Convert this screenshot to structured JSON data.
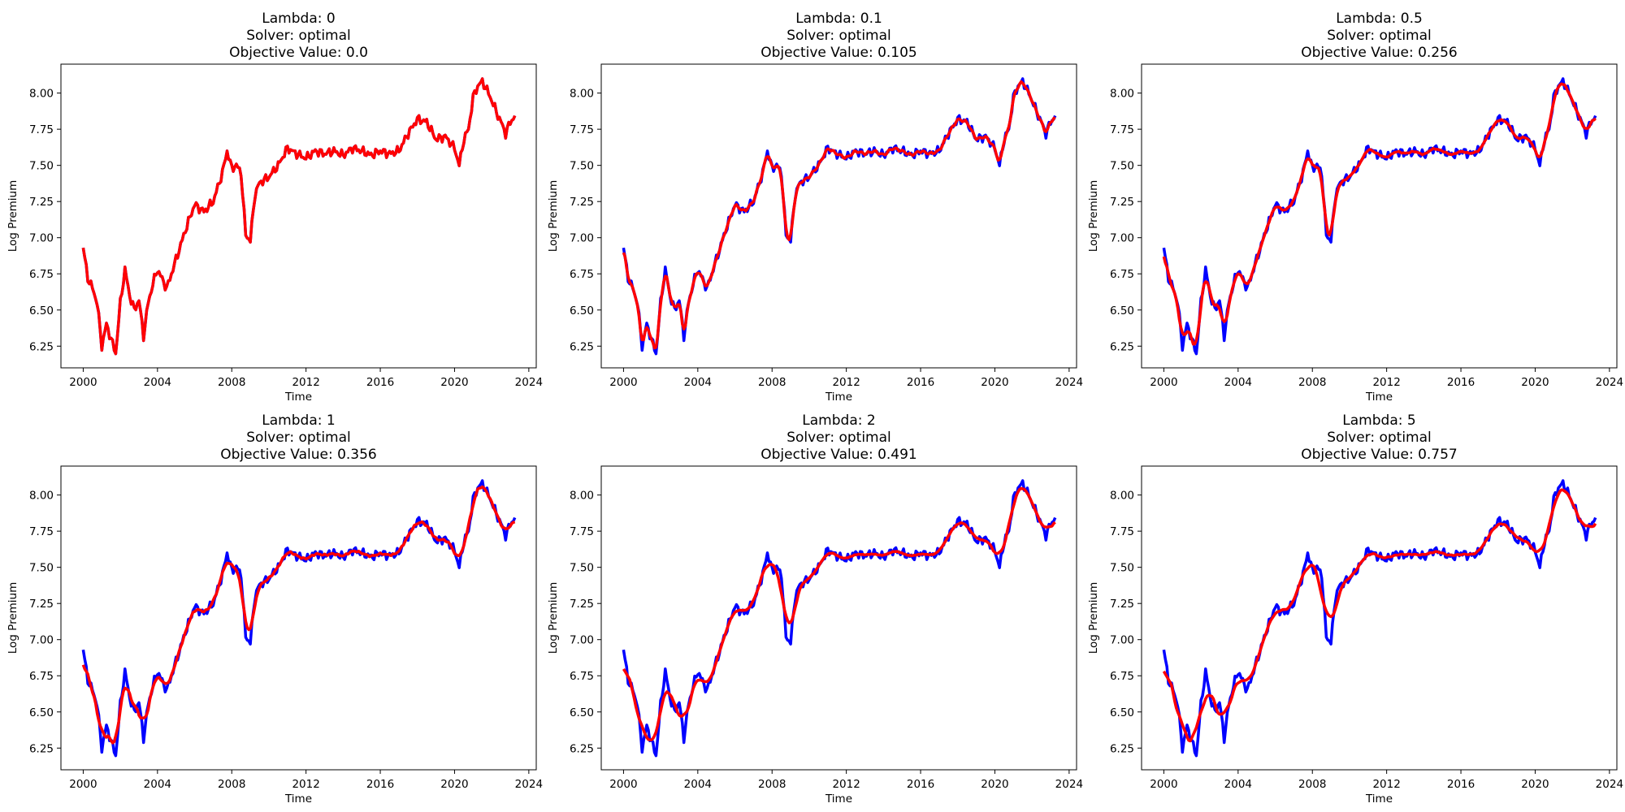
{
  "chart_data": {
    "type": "line",
    "layout": "2x3 grid",
    "grid": false,
    "x_ticks": [
      "2000",
      "2004",
      "2008",
      "2012",
      "2016",
      "2020",
      "2024"
    ],
    "y_ticks": [
      "6.25",
      "6.50",
      "6.75",
      "7.00",
      "7.25",
      "7.50",
      "7.75",
      "8.00"
    ],
    "xlim": [
      1998.8,
      2024.4
    ],
    "ylim": [
      6.1,
      8.2
    ],
    "xlabel": "Time",
    "ylabel": "Log Premium",
    "colors": {
      "original": "#0000ff",
      "smoothed": "#ff0000"
    },
    "original": {
      "x": [
        2000.0,
        2000.25,
        2000.5,
        2000.75,
        2001.0,
        2001.25,
        2001.5,
        2001.75,
        2002.0,
        2002.25,
        2002.5,
        2002.75,
        2003.0,
        2003.25,
        2003.5,
        2003.75,
        2004.0,
        2004.5,
        2005.0,
        2005.5,
        2006.0,
        2006.5,
        2007.0,
        2007.5,
        2007.75,
        2008.0,
        2008.25,
        2008.5,
        2008.75,
        2009.0,
        2009.25,
        2009.5,
        2010.0,
        2010.5,
        2011.0,
        2011.5,
        2012.0,
        2012.5,
        2013.0,
        2013.5,
        2014.0,
        2014.5,
        2015.0,
        2015.5,
        2016.0,
        2016.5,
        2017.0,
        2017.5,
        2018.0,
        2018.5,
        2019.0,
        2019.5,
        2020.0,
        2020.25,
        2020.5,
        2020.75,
        2021.0,
        2021.25,
        2021.5,
        2021.75,
        2022.0,
        2022.25,
        2022.5,
        2022.75,
        2023.0,
        2023.25
      ],
      "y": [
        6.93,
        6.72,
        6.65,
        6.55,
        6.25,
        6.4,
        6.3,
        6.2,
        6.55,
        6.78,
        6.6,
        6.5,
        6.57,
        6.32,
        6.55,
        6.68,
        6.78,
        6.65,
        6.85,
        7.05,
        7.23,
        7.18,
        7.25,
        7.45,
        7.6,
        7.48,
        7.5,
        7.45,
        7.02,
        6.98,
        7.3,
        7.38,
        7.42,
        7.5,
        7.62,
        7.58,
        7.55,
        7.6,
        7.58,
        7.6,
        7.57,
        7.62,
        7.6,
        7.57,
        7.6,
        7.58,
        7.6,
        7.72,
        7.82,
        7.8,
        7.68,
        7.7,
        7.62,
        7.5,
        7.68,
        7.75,
        7.97,
        8.05,
        8.08,
        8.02,
        7.95,
        7.87,
        7.8,
        7.72,
        7.8,
        7.84
      ]
    },
    "panels": [
      {
        "title": "Lambda: 0\nSolver: optimal\nObjective Value: 0.0",
        "lambda": 0,
        "objective_value": 0.0,
        "smoothing": 0
      },
      {
        "title": "Lambda: 0.1\nSolver: optimal\nObjective Value: 0.105",
        "lambda": 0.1,
        "objective_value": 0.105,
        "smoothing": 0.2
      },
      {
        "title": "Lambda: 0.5\nSolver: optimal\nObjective Value: 0.256",
        "lambda": 0.5,
        "objective_value": 0.256,
        "smoothing": 0.45
      },
      {
        "title": "Lambda: 1\nSolver: optimal\nObjective Value: 0.356",
        "lambda": 1,
        "objective_value": 0.356,
        "smoothing": 0.6
      },
      {
        "title": "Lambda: 2\nSolver: optimal\nObjective Value: 0.491",
        "lambda": 2,
        "objective_value": 0.491,
        "smoothing": 0.75
      },
      {
        "title": "Lambda: 5\nSolver: optimal\nObjective Value: 0.757",
        "lambda": 5,
        "objective_value": 0.757,
        "smoothing": 0.9
      }
    ]
  }
}
